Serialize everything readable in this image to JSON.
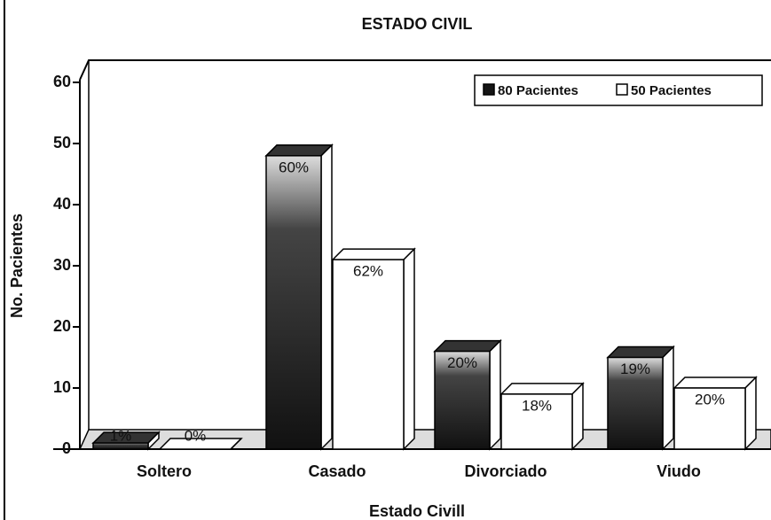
{
  "chart_data": {
    "type": "bar3d",
    "title": "ESTADO CIVIL",
    "x_label": "Estado Civill",
    "y_label": "No. Pacientes",
    "categories": [
      "Soltero",
      "Casado",
      "Divorciado",
      "Viudo"
    ],
    "series": [
      {
        "name": "80 Pacientes",
        "color": "#151515",
        "values": [
          1,
          48,
          16,
          15
        ],
        "value_labels": [
          "1%",
          "60%",
          "20%",
          "19%"
        ]
      },
      {
        "name": "50 Pacientes",
        "color": "#ffffff",
        "values": [
          0,
          31,
          9,
          10
        ],
        "value_labels": [
          "0%",
          "62%",
          "18%",
          "20%"
        ]
      }
    ],
    "ylim": [
      0,
      60
    ],
    "yticks": [
      0,
      10,
      20,
      30,
      40,
      50,
      60
    ],
    "legend": "top-right"
  }
}
